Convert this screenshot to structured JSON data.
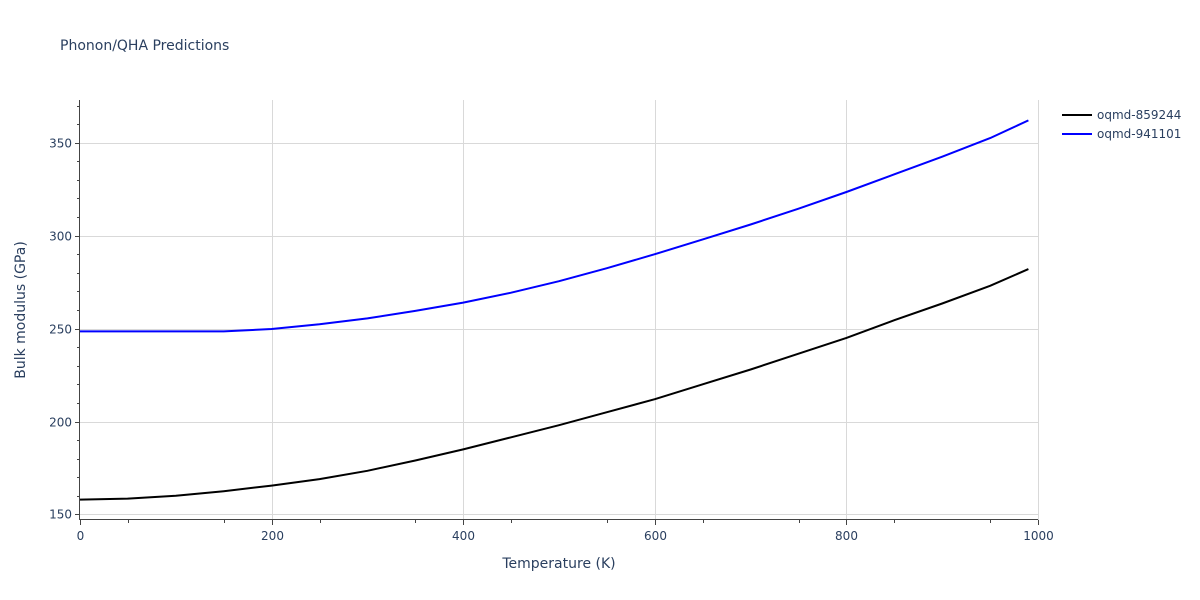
{
  "chart_data": {
    "type": "line",
    "title": "Phonon/QHA Predictions",
    "xlabel": "Temperature (K)",
    "ylabel": "Bulk modulus (GPa)",
    "xlim": [
      0,
      1000
    ],
    "ylim": [
      147,
      373
    ],
    "xticks": [
      0,
      200,
      400,
      600,
      800,
      1000
    ],
    "yticks": [
      150,
      200,
      250,
      300,
      350
    ],
    "grid": true,
    "legend_position": "top-right",
    "series": [
      {
        "name": "oqmd-859244",
        "color": "#000000",
        "x": [
          0,
          50,
          100,
          150,
          200,
          250,
          300,
          350,
          400,
          450,
          500,
          550,
          600,
          650,
          700,
          750,
          800,
          850,
          900,
          950,
          990
        ],
        "y": [
          158,
          158.5,
          160,
          162.5,
          165.5,
          169,
          173.5,
          179,
          185,
          191.5,
          198,
          205,
          212,
          220,
          228,
          236.5,
          245,
          254.5,
          263.5,
          273,
          282
        ]
      },
      {
        "name": "oqmd-941101",
        "color": "#0000ff",
        "x": [
          0,
          50,
          100,
          150,
          200,
          250,
          300,
          350,
          400,
          450,
          500,
          550,
          600,
          650,
          700,
          750,
          800,
          850,
          900,
          950,
          990
        ],
        "y": [
          248.5,
          248.5,
          248.5,
          248.5,
          249.8,
          252.3,
          255.5,
          259.5,
          264,
          269.3,
          275.5,
          282.5,
          290,
          298,
          306,
          314.5,
          323.5,
          333,
          342.5,
          352.5,
          362
        ]
      }
    ]
  }
}
